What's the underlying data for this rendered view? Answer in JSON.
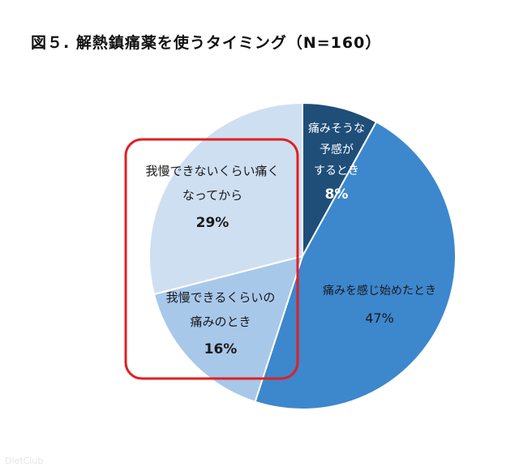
{
  "title": "図５. 解熱鎮痛薬を使うタイミング（N=160）",
  "watermark": "DietClub",
  "chart_data": {
    "type": "pie",
    "title": "図５. 解熱鎮痛薬を使うタイミング（N=160）",
    "slices": [
      {
        "label_lines": [
          "痛みそうな",
          "予感が",
          "するとき"
        ],
        "value": 8,
        "value_text": "8%",
        "color": "#1f4e79",
        "label_color": "#ffffff"
      },
      {
        "label_lines": [
          "痛みを感じ始めたとき"
        ],
        "value": 47,
        "value_text": "47%",
        "color": "#3d87cd",
        "label_color": "#1a1a1a"
      },
      {
        "label_lines": [
          "我慢できるくらいの",
          "痛みのとき"
        ],
        "value": 16,
        "value_text": "16%",
        "color": "#a8c8ea",
        "label_color": "#1a1a1a"
      },
      {
        "label_lines": [
          "我慢できないくらい痛く",
          "なってから"
        ],
        "value": 29,
        "value_text": "29%",
        "color": "#cfdff2",
        "label_color": "#1a1a1a"
      }
    ],
    "highlight_color": "#e02020"
  }
}
